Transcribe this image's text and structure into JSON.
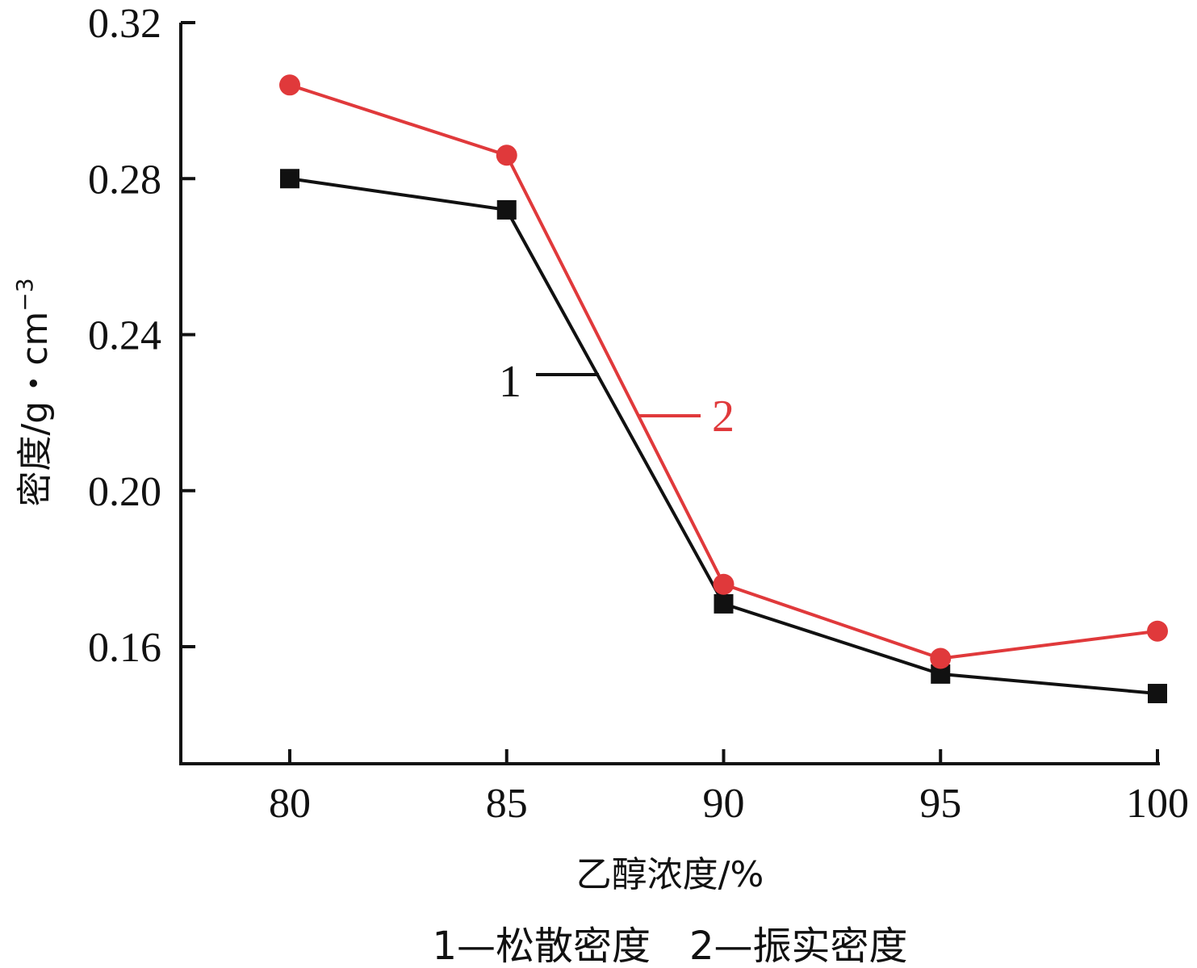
{
  "chart_data": {
    "type": "line",
    "x": [
      80,
      85,
      90,
      95,
      100
    ],
    "xlabel": "乙醇浓度/%",
    "ylabel": "密度/g・cm",
    "ylabel_sup": "−3",
    "xlim": [
      77.5,
      100
    ],
    "ylim": [
      0.13,
      0.32
    ],
    "xticks": [
      "80",
      "85",
      "90",
      "95",
      "100"
    ],
    "yticks": [
      "0.16",
      "0.20",
      "0.24",
      "0.28",
      "0.32"
    ],
    "caption": "1—松散密度　2—振实密度",
    "series": [
      {
        "tag": "1",
        "color": "#111111",
        "marker": "square",
        "values": [
          0.28,
          0.272,
          0.171,
          0.153,
          0.148
        ]
      },
      {
        "tag": "2",
        "color": "#e0393b",
        "marker": "circle",
        "values": [
          0.304,
          0.286,
          0.176,
          0.157,
          0.164
        ]
      }
    ]
  }
}
